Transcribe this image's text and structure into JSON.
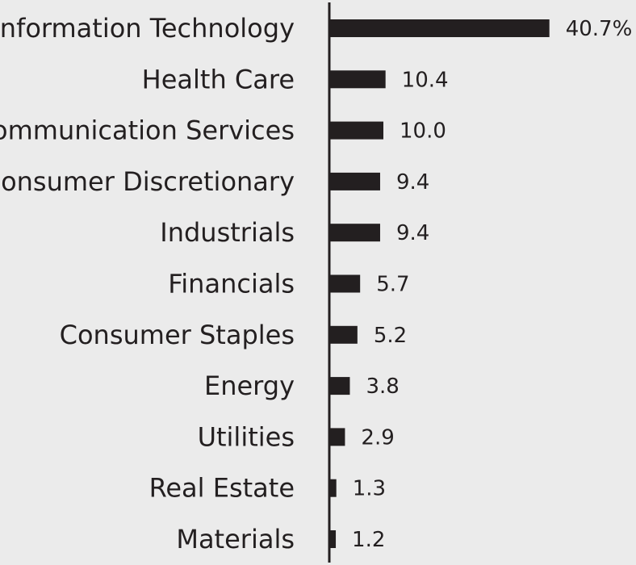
{
  "chart_data": {
    "type": "bar",
    "orientation": "horizontal",
    "categories": [
      "Information Technology",
      "Health Care",
      "Communication Services",
      "Consumer Discretionary",
      "Industrials",
      "Financials",
      "Consumer Staples",
      "Energy",
      "Utilities",
      "Real Estate",
      "Materials"
    ],
    "values": [
      40.7,
      10.4,
      10.0,
      9.4,
      9.4,
      5.7,
      5.2,
      3.8,
      2.9,
      1.3,
      1.2
    ],
    "value_labels": [
      "40.7%",
      "10.4",
      "10.0",
      "9.4",
      "9.4",
      "5.7",
      "5.2",
      "3.8",
      "2.9",
      "1.3",
      "1.2"
    ],
    "title": "",
    "xlabel": "",
    "ylabel": "",
    "grid": false,
    "legend": "none",
    "colors": {
      "bar": "#231f20",
      "text": "#231f20",
      "axis": "#231f20",
      "background": "#ebebeb"
    }
  }
}
